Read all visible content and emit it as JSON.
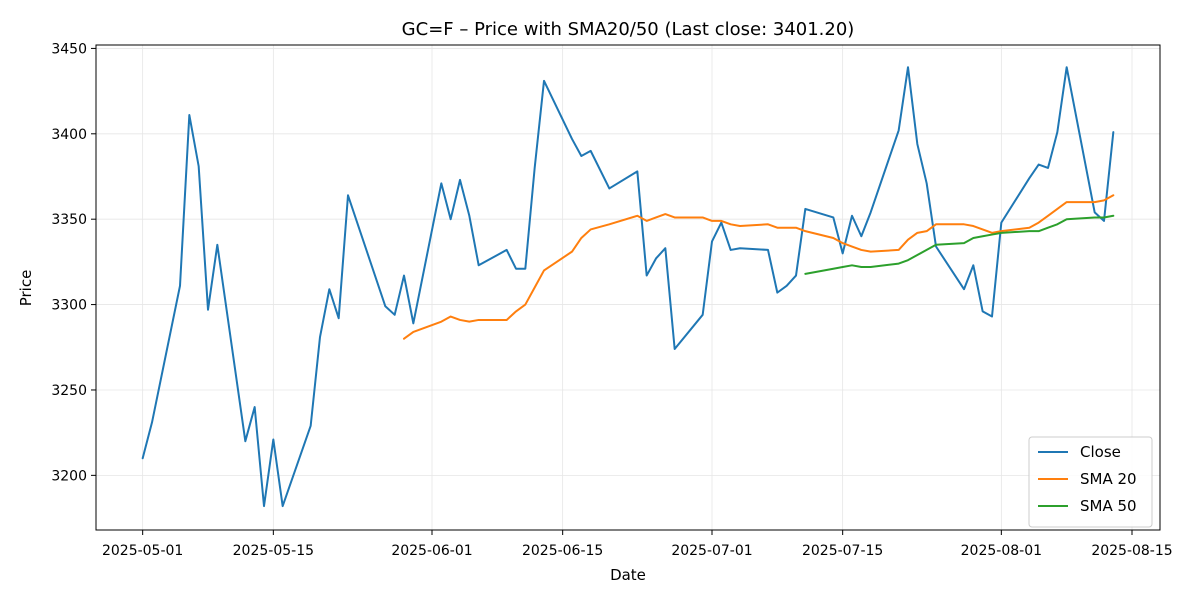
{
  "chart_data": {
    "type": "line",
    "title": "GC=F – Price with SMA20/50 (Last close: 3401.20)",
    "xlabel": "Date",
    "ylabel": "Price",
    "xlim": [
      "2025-04-26",
      "2025-08-18"
    ],
    "ylim": [
      3168,
      3452
    ],
    "x_ticks": [
      "2025-05-01",
      "2025-05-15",
      "2025-06-01",
      "2025-06-15",
      "2025-07-01",
      "2025-07-15",
      "2025-08-01",
      "2025-08-15"
    ],
    "y_ticks": [
      3200,
      3250,
      3300,
      3350,
      3400,
      3450
    ],
    "grid": true,
    "legend_position": "bottom-right",
    "series": [
      {
        "name": "Close",
        "color": "#1f77b4",
        "points": [
          [
            "2025-05-01",
            3210
          ],
          [
            "2025-05-02",
            3231
          ],
          [
            "2025-05-05",
            3311
          ],
          [
            "2025-05-06",
            3411
          ],
          [
            "2025-05-07",
            3381
          ],
          [
            "2025-05-08",
            3297
          ],
          [
            "2025-05-09",
            3335
          ],
          [
            "2025-05-12",
            3220
          ],
          [
            "2025-05-13",
            3240
          ],
          [
            "2025-05-14",
            3182
          ],
          [
            "2025-05-15",
            3221
          ],
          [
            "2025-05-16",
            3182
          ],
          [
            "2025-05-19",
            3229
          ],
          [
            "2025-05-20",
            3281
          ],
          [
            "2025-05-21",
            3309
          ],
          [
            "2025-05-22",
            3292
          ],
          [
            "2025-05-23",
            3364
          ],
          [
            "2025-05-27",
            3299
          ],
          [
            "2025-05-28",
            3294
          ],
          [
            "2025-05-29",
            3317
          ],
          [
            "2025-05-30",
            3289
          ],
          [
            "2025-06-02",
            3371
          ],
          [
            "2025-06-03",
            3350
          ],
          [
            "2025-06-04",
            3373
          ],
          [
            "2025-06-05",
            3352
          ],
          [
            "2025-06-06",
            3323
          ],
          [
            "2025-06-09",
            3332
          ],
          [
            "2025-06-10",
            3321
          ],
          [
            "2025-06-11",
            3321
          ],
          [
            "2025-06-12",
            3380
          ],
          [
            "2025-06-13",
            3431
          ],
          [
            "2025-06-16",
            3397
          ],
          [
            "2025-06-17",
            3387
          ],
          [
            "2025-06-18",
            3390
          ],
          [
            "2025-06-20",
            3368
          ],
          [
            "2025-06-23",
            3378
          ],
          [
            "2025-06-24",
            3317
          ],
          [
            "2025-06-25",
            3327
          ],
          [
            "2025-06-26",
            3333
          ],
          [
            "2025-06-27",
            3274
          ],
          [
            "2025-06-30",
            3294
          ],
          [
            "2025-07-01",
            3337
          ],
          [
            "2025-07-02",
            3348
          ],
          [
            "2025-07-03",
            3332
          ],
          [
            "2025-07-04",
            3333
          ],
          [
            "2025-07-07",
            3332
          ],
          [
            "2025-07-08",
            3307
          ],
          [
            "2025-07-09",
            3311
          ],
          [
            "2025-07-10",
            3317
          ],
          [
            "2025-07-11",
            3356
          ],
          [
            "2025-07-14",
            3351
          ],
          [
            "2025-07-15",
            3330
          ],
          [
            "2025-07-16",
            3352
          ],
          [
            "2025-07-17",
            3340
          ],
          [
            "2025-07-18",
            3354
          ],
          [
            "2025-07-21",
            3402
          ],
          [
            "2025-07-22",
            3439
          ],
          [
            "2025-07-23",
            3394
          ],
          [
            "2025-07-24",
            3371
          ],
          [
            "2025-07-25",
            3334
          ],
          [
            "2025-07-28",
            3309
          ],
          [
            "2025-07-29",
            3323
          ],
          [
            "2025-07-30",
            3296
          ],
          [
            "2025-07-31",
            3293
          ],
          [
            "2025-08-01",
            3348
          ],
          [
            "2025-08-04",
            3374
          ],
          [
            "2025-08-05",
            3382
          ],
          [
            "2025-08-06",
            3380
          ],
          [
            "2025-08-07",
            3401
          ],
          [
            "2025-08-08",
            3439
          ],
          [
            "2025-08-11",
            3354
          ],
          [
            "2025-08-12",
            3349
          ],
          [
            "2025-08-13",
            3401
          ]
        ]
      },
      {
        "name": "SMA 20",
        "color": "#ff7f0e",
        "points": [
          [
            "2025-05-29",
            3280
          ],
          [
            "2025-05-30",
            3284
          ],
          [
            "2025-06-02",
            3290
          ],
          [
            "2025-06-03",
            3293
          ],
          [
            "2025-06-04",
            3291
          ],
          [
            "2025-06-05",
            3290
          ],
          [
            "2025-06-06",
            3291
          ],
          [
            "2025-06-09",
            3291
          ],
          [
            "2025-06-10",
            3296
          ],
          [
            "2025-06-11",
            3300
          ],
          [
            "2025-06-12",
            3310
          ],
          [
            "2025-06-13",
            3320
          ],
          [
            "2025-06-16",
            3331
          ],
          [
            "2025-06-17",
            3339
          ],
          [
            "2025-06-18",
            3344
          ],
          [
            "2025-06-20",
            3347
          ],
          [
            "2025-06-23",
            3352
          ],
          [
            "2025-06-24",
            3349
          ],
          [
            "2025-06-25",
            3351
          ],
          [
            "2025-06-26",
            3353
          ],
          [
            "2025-06-27",
            3351
          ],
          [
            "2025-06-30",
            3351
          ],
          [
            "2025-07-01",
            3349
          ],
          [
            "2025-07-02",
            3349
          ],
          [
            "2025-07-03",
            3347
          ],
          [
            "2025-07-04",
            3346
          ],
          [
            "2025-07-07",
            3347
          ],
          [
            "2025-07-08",
            3345
          ],
          [
            "2025-07-09",
            3345
          ],
          [
            "2025-07-10",
            3345
          ],
          [
            "2025-07-11",
            3343
          ],
          [
            "2025-07-14",
            3339
          ],
          [
            "2025-07-15",
            3336
          ],
          [
            "2025-07-16",
            3334
          ],
          [
            "2025-07-17",
            3332
          ],
          [
            "2025-07-18",
            3331
          ],
          [
            "2025-07-21",
            3332
          ],
          [
            "2025-07-22",
            3338
          ],
          [
            "2025-07-23",
            3342
          ],
          [
            "2025-07-24",
            3343
          ],
          [
            "2025-07-25",
            3347
          ],
          [
            "2025-07-28",
            3347
          ],
          [
            "2025-07-29",
            3346
          ],
          [
            "2025-07-30",
            3344
          ],
          [
            "2025-07-31",
            3342
          ],
          [
            "2025-08-01",
            3343
          ],
          [
            "2025-08-04",
            3345
          ],
          [
            "2025-08-05",
            3348
          ],
          [
            "2025-08-06",
            3352
          ],
          [
            "2025-08-07",
            3356
          ],
          [
            "2025-08-08",
            3360
          ],
          [
            "2025-08-11",
            3360
          ],
          [
            "2025-08-12",
            3361
          ],
          [
            "2025-08-13",
            3364
          ]
        ]
      },
      {
        "name": "SMA 50",
        "color": "#2ca02c",
        "points": [
          [
            "2025-07-11",
            3318
          ],
          [
            "2025-07-14",
            3321
          ],
          [
            "2025-07-15",
            3322
          ],
          [
            "2025-07-16",
            3323
          ],
          [
            "2025-07-17",
            3322
          ],
          [
            "2025-07-18",
            3322
          ],
          [
            "2025-07-21",
            3324
          ],
          [
            "2025-07-22",
            3326
          ],
          [
            "2025-07-23",
            3329
          ],
          [
            "2025-07-24",
            3332
          ],
          [
            "2025-07-25",
            3335
          ],
          [
            "2025-07-28",
            3336
          ],
          [
            "2025-07-29",
            3339
          ],
          [
            "2025-07-30",
            3340
          ],
          [
            "2025-07-31",
            3341
          ],
          [
            "2025-08-01",
            3342
          ],
          [
            "2025-08-04",
            3343
          ],
          [
            "2025-08-05",
            3343
          ],
          [
            "2025-08-06",
            3345
          ],
          [
            "2025-08-07",
            3347
          ],
          [
            "2025-08-08",
            3350
          ],
          [
            "2025-08-11",
            3351
          ],
          [
            "2025-08-12",
            3351
          ],
          [
            "2025-08-13",
            3352
          ]
        ]
      }
    ]
  }
}
